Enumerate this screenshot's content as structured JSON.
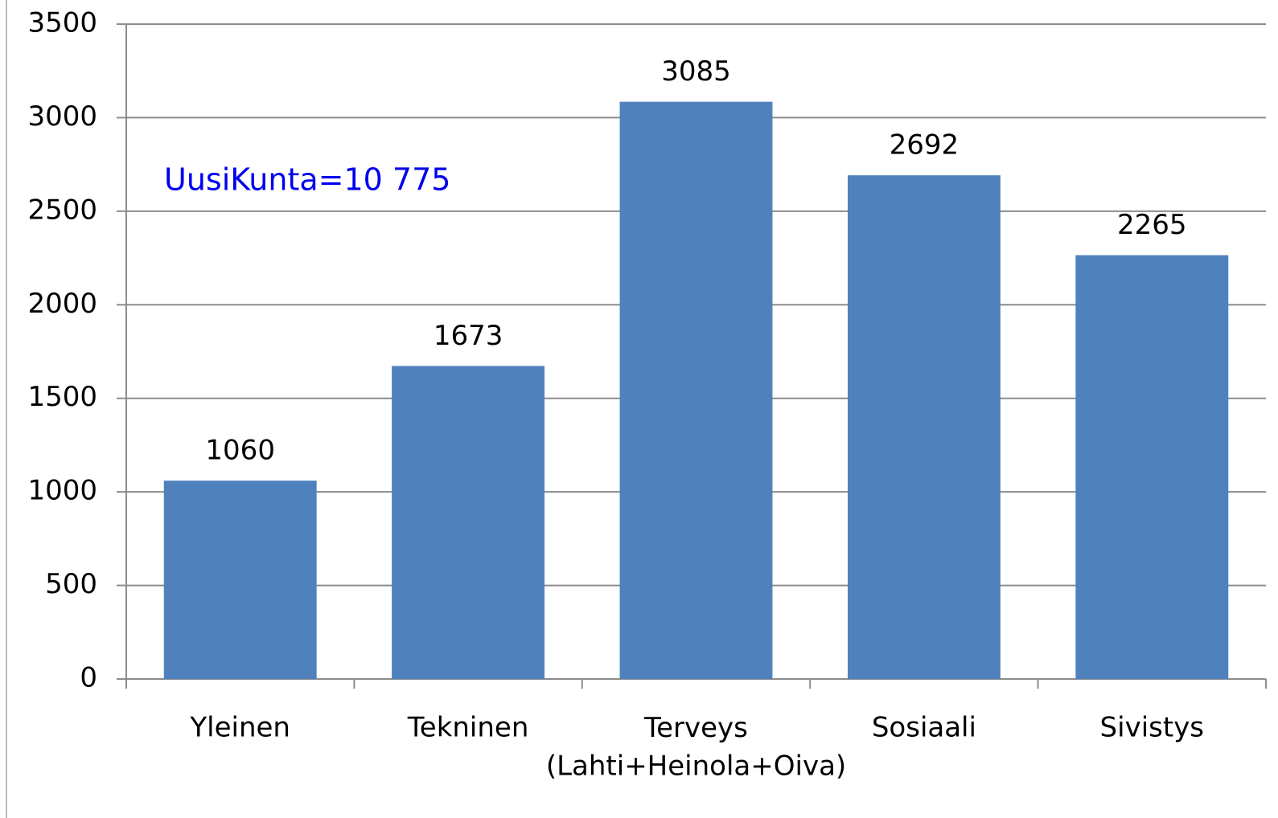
{
  "chart_data": {
    "type": "bar",
    "categories": [
      "Yleinen",
      "Tekninen",
      "Terveys\n(Lahti+Heinola+Oiva)",
      "Sosiaali",
      "Sivistys"
    ],
    "values": [
      1060,
      1673,
      3085,
      2692,
      2265
    ],
    "color": "#4f81bd",
    "annotation": "UusiKunta=10 775",
    "annotation_color": "#0000ee",
    "ylim": [
      0,
      3500
    ],
    "yticks": [
      0,
      500,
      1000,
      1500,
      2000,
      2500,
      3000,
      3500
    ],
    "grid": true
  }
}
